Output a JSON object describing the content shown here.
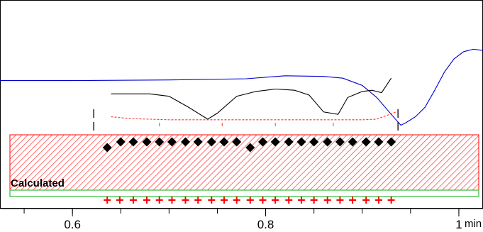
{
  "chart_data": {
    "type": "line",
    "title": "",
    "xlabel": "",
    "ylabel": "",
    "x_unit": "min",
    "xlim": [
      0.525,
      1.025
    ],
    "x_ticks": [
      {
        "value": 0.6,
        "label": "0.6"
      },
      {
        "value": 0.8,
        "label": "0.8"
      },
      {
        "value": 1.0,
        "label": "1"
      }
    ],
    "grid": false,
    "legend": "none",
    "region": {
      "label": "Calculated",
      "x_start": 0.525,
      "x_end": 1.025,
      "fill_color": "#ff3333",
      "border_color": "#ff0000",
      "pattern": "diagonal-hatch"
    },
    "baseline_band": {
      "x_start": 0.525,
      "x_end": 1.025,
      "color": "#33bb33"
    },
    "series": [
      {
        "kind": "line",
        "color": "#0000cc",
        "points": [
          [
            0.525,
            0.58
          ],
          [
            0.6,
            0.58
          ],
          [
            0.7,
            0.575
          ],
          [
            0.78,
            0.565
          ],
          [
            0.82,
            0.54
          ],
          [
            0.86,
            0.545
          ],
          [
            0.88,
            0.56
          ],
          [
            0.9,
            0.62
          ],
          [
            0.915,
            0.72
          ],
          [
            0.93,
            0.86
          ],
          [
            0.94,
            0.95
          ],
          [
            0.945,
            0.93
          ],
          [
            0.955,
            0.88
          ],
          [
            0.965,
            0.8
          ],
          [
            0.975,
            0.66
          ],
          [
            0.985,
            0.51
          ],
          [
            0.995,
            0.4
          ],
          [
            1.005,
            0.34
          ],
          [
            1.015,
            0.32
          ],
          [
            1.025,
            0.33
          ]
        ]
      },
      {
        "kind": "line",
        "color": "#000000",
        "points": [
          [
            0.64,
            0.69
          ],
          [
            0.68,
            0.69
          ],
          [
            0.7,
            0.71
          ],
          [
            0.72,
            0.8
          ],
          [
            0.74,
            0.9
          ],
          [
            0.75,
            0.85
          ],
          [
            0.77,
            0.71
          ],
          [
            0.79,
            0.67
          ],
          [
            0.81,
            0.65
          ],
          [
            0.83,
            0.66
          ],
          [
            0.845,
            0.7
          ],
          [
            0.86,
            0.84
          ],
          [
            0.875,
            0.86
          ],
          [
            0.885,
            0.72
          ],
          [
            0.9,
            0.67
          ],
          [
            0.91,
            0.66
          ],
          [
            0.92,
            0.68
          ],
          [
            0.93,
            0.56
          ]
        ]
      },
      {
        "kind": "dashed",
        "color": "#ff3333",
        "points": [
          [
            0.64,
            0.88
          ],
          [
            0.66,
            0.895
          ],
          [
            0.7,
            0.905
          ],
          [
            0.75,
            0.905
          ],
          [
            0.8,
            0.905
          ],
          [
            0.85,
            0.905
          ],
          [
            0.9,
            0.905
          ],
          [
            0.915,
            0.9
          ],
          [
            0.925,
            0.87
          ],
          [
            0.935,
            0.84
          ]
        ]
      },
      {
        "kind": "markers",
        "marker": "diamond",
        "color": "#000000",
        "points": [
          [
            0.636,
            1.0
          ],
          [
            0.65,
            1.0
          ],
          [
            0.663,
            1.0
          ],
          [
            0.677,
            1.0
          ],
          [
            0.69,
            1.0
          ],
          [
            0.703,
            1.0
          ],
          [
            0.717,
            1.0
          ],
          [
            0.73,
            1.0
          ],
          [
            0.744,
            1.0
          ],
          [
            0.757,
            1.0
          ],
          [
            0.77,
            1.0
          ],
          [
            0.784,
            1.0
          ],
          [
            0.797,
            1.0
          ],
          [
            0.81,
            1.0
          ],
          [
            0.824,
            1.0
          ],
          [
            0.837,
            1.0
          ],
          [
            0.85,
            1.0
          ],
          [
            0.864,
            1.0
          ],
          [
            0.877,
            1.0
          ],
          [
            0.89,
            1.0
          ],
          [
            0.904,
            1.0
          ],
          [
            0.917,
            1.0
          ],
          [
            0.93,
            1.0
          ]
        ]
      },
      {
        "kind": "markers",
        "marker": "plus",
        "color": "#ff0000",
        "points": [
          [
            0.636,
            1.0
          ],
          [
            0.649,
            1.0
          ],
          [
            0.663,
            1.0
          ],
          [
            0.677,
            1.0
          ],
          [
            0.69,
            1.0
          ],
          [
            0.703,
            1.0
          ],
          [
            0.717,
            1.0
          ],
          [
            0.73,
            1.0
          ],
          [
            0.744,
            1.0
          ],
          [
            0.757,
            1.0
          ],
          [
            0.77,
            1.0
          ],
          [
            0.784,
            1.0
          ],
          [
            0.797,
            1.0
          ],
          [
            0.81,
            1.0
          ],
          [
            0.824,
            1.0
          ],
          [
            0.837,
            1.0
          ],
          [
            0.85,
            1.0
          ],
          [
            0.864,
            1.0
          ],
          [
            0.877,
            1.0
          ],
          [
            0.89,
            1.0
          ],
          [
            0.904,
            1.0
          ],
          [
            0.917,
            1.0
          ],
          [
            0.93,
            1.0
          ]
        ]
      },
      {
        "kind": "event-markers",
        "color": "#000000",
        "points": [
          [
            0.622,
            1.0
          ],
          [
            0.937,
            1.0
          ]
        ]
      }
    ]
  }
}
